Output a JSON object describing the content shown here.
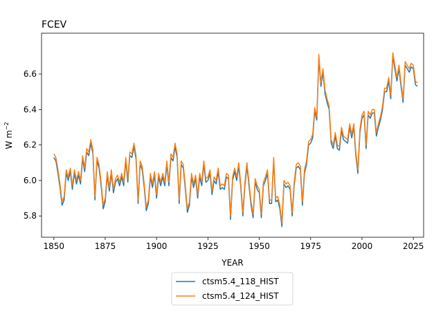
{
  "chart_data": {
    "type": "line",
    "title": "FCEV",
    "xlabel": "YEAR",
    "ylabel": "W m",
    "ylabel_superscript": "−2",
    "xlim": [
      1844,
      2030
    ],
    "ylim": [
      5.68,
      6.83
    ],
    "xticks": [
      1850,
      1875,
      1900,
      1925,
      1950,
      1975,
      2000,
      2025
    ],
    "xtick_labels": [
      "1850",
      "1875",
      "1900",
      "1925",
      "1950",
      "1975",
      "2000",
      "2025"
    ],
    "yticks": [
      5.8,
      6.0,
      6.2,
      6.4,
      6.6
    ],
    "ytick_labels": [
      "5.8",
      "6.0",
      "6.2",
      "6.4",
      "6.6"
    ],
    "x_start": 1850,
    "x_step": 1,
    "legend_position": "below",
    "series": [
      {
        "name": "ctsm5.4_118_HIST",
        "color": "#1f77b4",
        "values": [
          6.13,
          6.11,
          6.04,
          5.96,
          5.86,
          5.89,
          6.04,
          6.0,
          6.05,
          5.95,
          6.04,
          5.98,
          6.03,
          5.98,
          6.12,
          6.05,
          6.16,
          6.14,
          6.21,
          6.15,
          5.89,
          6.11,
          6.07,
          5.97,
          5.84,
          5.88,
          6.03,
          5.94,
          6.04,
          5.93,
          5.99,
          6.01,
          5.97,
          6.02,
          5.97,
          6.11,
          5.99,
          6.14,
          6.13,
          6.19,
          6.12,
          5.87,
          6.09,
          6.06,
          5.96,
          5.83,
          5.87,
          6.02,
          5.96,
          6.03,
          5.9,
          6.02,
          5.97,
          6.02,
          5.97,
          6.09,
          5.97,
          6.13,
          6.11,
          6.19,
          6.13,
          5.87,
          6.09,
          6.07,
          5.95,
          5.82,
          5.86,
          6.02,
          5.96,
          6.01,
          5.9,
          6.02,
          5.97,
          6.09,
          5.99,
          6.0,
          6.04,
          5.92,
          6.0,
          5.98,
          6.05,
          5.95,
          5.96,
          5.95,
          6.02,
          6.01,
          5.78,
          6.0,
          6.05,
          6.0,
          6.08,
          5.96,
          5.8,
          5.97,
          6.08,
          5.97,
          5.86,
          5.79,
          5.99,
          5.95,
          5.93,
          5.79,
          5.97,
          6.0,
          6.04,
          5.87,
          5.87,
          6.11,
          5.88,
          5.89,
          5.84,
          5.74,
          5.98,
          5.96,
          5.97,
          5.95,
          5.8,
          5.97,
          6.07,
          6.08,
          6.06,
          5.86,
          6.04,
          6.09,
          6.2,
          6.21,
          6.24,
          6.39,
          6.34,
          6.69,
          6.53,
          6.61,
          6.49,
          6.44,
          6.4,
          6.21,
          6.18,
          6.25,
          6.18,
          6.17,
          6.28,
          6.23,
          6.22,
          6.21,
          6.3,
          6.24,
          6.3,
          6.14,
          6.04,
          6.27,
          6.35,
          6.37,
          6.18,
          6.37,
          6.35,
          6.38,
          6.38,
          6.25,
          6.3,
          6.34,
          6.4,
          6.5,
          6.5,
          6.56,
          6.46,
          6.7,
          6.63,
          6.56,
          6.63,
          6.53,
          6.44,
          6.65,
          6.63,
          6.61,
          6.64,
          6.63,
          6.54,
          6.53
        ]
      },
      {
        "name": "ctsm5.4_124_HIST",
        "color": "#ff7f0e",
        "values": [
          6.15,
          6.13,
          6.06,
          5.98,
          5.88,
          5.91,
          6.06,
          6.02,
          6.07,
          5.97,
          6.06,
          6.0,
          6.05,
          6.0,
          6.14,
          6.07,
          6.18,
          6.16,
          6.23,
          6.17,
          5.91,
          6.13,
          6.09,
          5.99,
          5.86,
          5.9,
          6.05,
          5.96,
          6.06,
          5.95,
          6.01,
          6.03,
          5.99,
          6.04,
          5.99,
          6.13,
          6.01,
          6.16,
          6.15,
          6.21,
          6.14,
          5.89,
          6.11,
          6.08,
          5.98,
          5.85,
          5.89,
          6.04,
          5.98,
          6.05,
          5.92,
          6.04,
          5.99,
          6.04,
          5.99,
          6.11,
          5.99,
          6.15,
          6.13,
          6.21,
          6.15,
          5.89,
          6.11,
          6.09,
          5.97,
          5.84,
          5.88,
          6.04,
          5.98,
          6.03,
          5.92,
          6.04,
          5.99,
          6.11,
          6.01,
          6.02,
          6.06,
          5.94,
          6.02,
          6.0,
          6.07,
          5.97,
          5.98,
          5.97,
          6.04,
          6.03,
          5.8,
          6.02,
          6.07,
          6.02,
          6.1,
          5.98,
          5.82,
          5.99,
          6.1,
          5.99,
          5.88,
          5.81,
          6.01,
          5.97,
          5.95,
          5.81,
          5.99,
          6.02,
          6.06,
          5.89,
          5.89,
          6.13,
          5.9,
          5.91,
          5.86,
          5.76,
          6.0,
          5.98,
          5.99,
          5.97,
          5.82,
          5.99,
          6.09,
          6.1,
          6.08,
          5.88,
          6.06,
          6.11,
          6.22,
          6.23,
          6.26,
          6.41,
          6.36,
          6.71,
          6.55,
          6.63,
          6.51,
          6.46,
          6.42,
          6.23,
          6.2,
          6.27,
          6.2,
          6.19,
          6.3,
          6.25,
          6.24,
          6.23,
          6.32,
          6.26,
          6.32,
          6.16,
          6.06,
          6.29,
          6.37,
          6.39,
          6.2,
          6.39,
          6.37,
          6.4,
          6.4,
          6.27,
          6.32,
          6.36,
          6.42,
          6.52,
          6.52,
          6.58,
          6.48,
          6.72,
          6.65,
          6.58,
          6.65,
          6.55,
          6.46,
          6.67,
          6.65,
          6.63,
          6.66,
          6.65,
          6.56,
          6.55
        ]
      }
    ]
  }
}
